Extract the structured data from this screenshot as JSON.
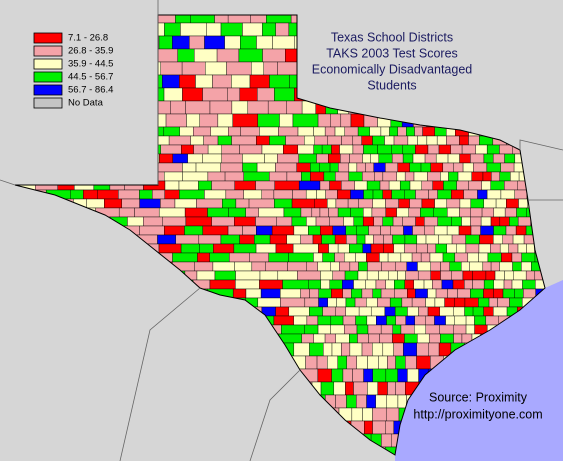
{
  "title_lines": [
    "Texas School Districts",
    "TAKS 2003 Test Scores",
    "Economically Disadvantaged",
    "Students"
  ],
  "legend": [
    {
      "label": "7.1 - 26.8",
      "color": "#ff0000"
    },
    {
      "label": "26.8 - 35.9",
      "color": "#f4a3a8"
    },
    {
      "label": "35.9 - 44.5",
      "color": "#ffffc4"
    },
    {
      "label": "44.5 - 56.7",
      "color": "#00f000"
    },
    {
      "label": "56.7 - 86.4",
      "color": "#0000ff"
    },
    {
      "label": "No Data",
      "color": "#c4c4c4"
    }
  ],
  "source": [
    "Source: Proximity",
    "http://proximityone.com"
  ]
}
